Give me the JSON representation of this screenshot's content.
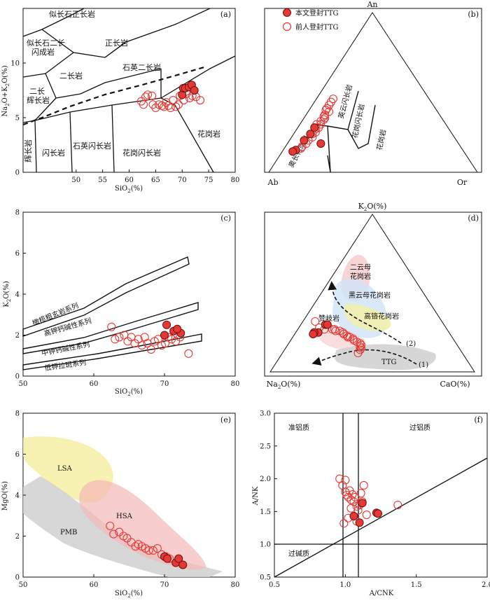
{
  "legend": {
    "present_study": "本文登封TTG",
    "previous": "前人登封TTG",
    "filled_color": "#e53935",
    "open_color": "#e53935"
  },
  "chart_data": [
    {
      "id": "a",
      "panel_label": "(a)",
      "type": "scatter",
      "xlabel": "SiO2(%)",
      "ylabel": "Na2O+K2O(%)",
      "xlim": [
        40,
        80
      ],
      "ylim": [
        0,
        15
      ],
      "xticks": [
        "50",
        "55",
        "60",
        "65",
        "70",
        "75",
        "80"
      ],
      "yticks": [
        "0",
        "5",
        "10"
      ],
      "fields": [
        "似长石正长岩",
        "正长岩",
        "似长石二长闪成岩",
        "石英二长岩",
        "二长岩",
        "二长辉长岩",
        "辉长岩",
        "闪长岩",
        "石英闪长岩",
        "花岗闪长岩",
        "花岗岩"
      ],
      "series": [
        {
          "name": "本文登封TTG",
          "style": "filled",
          "x": [
            70.0,
            70.2,
            70.6,
            71.3,
            71.8,
            72.3
          ],
          "y": [
            7.1,
            7.7,
            7.7,
            7.8,
            8.0,
            7.5
          ]
        },
        {
          "name": "前人登封TTG",
          "style": "open",
          "x": [
            62.3,
            62.7,
            63.1,
            63.5,
            64.3,
            64.5,
            65.0,
            65.6,
            66.2,
            66.6,
            67.0,
            67.4,
            67.8,
            68.3,
            68.8,
            69.3,
            69.6,
            70.3,
            70.8,
            71.4,
            71.9,
            72.6,
            73.4
          ],
          "y": [
            6.5,
            6.2,
            6.9,
            7.1,
            7.0,
            6.2,
            5.9,
            6.2,
            6.1,
            6.0,
            6.4,
            6.1,
            5.9,
            6.6,
            6.0,
            6.2,
            7.0,
            6.6,
            7.2,
            6.8,
            7.0,
            6.9,
            6.6
          ]
        }
      ]
    },
    {
      "id": "b",
      "panel_label": "(b)",
      "type": "ternary",
      "apices": [
        "An",
        "Ab",
        "Or"
      ],
      "fields": [
        "英云闪长岩",
        "花岗闪长岩",
        "花岗岩",
        "奥长花岗岩"
      ],
      "series": [
        {
          "name": "本文登封TTG",
          "style": "filled",
          "an": [
            28,
            24,
            20,
            14,
            13,
            18
          ],
          "ab": [
            64,
            68,
            73,
            80,
            82,
            66
          ],
          "or": [
            8,
            8,
            7,
            6,
            5,
            16
          ]
        },
        {
          "name": "前人登封TTG",
          "style": "open",
          "an": [
            46,
            44,
            42,
            40,
            39,
            38,
            36,
            35,
            34,
            33,
            32,
            30,
            30,
            28,
            27,
            25,
            24,
            22,
            20,
            18,
            16,
            15
          ],
          "ab": [
            46,
            48,
            50,
            52,
            53,
            52,
            55,
            56,
            56,
            57,
            59,
            60,
            62,
            62,
            64,
            65,
            67,
            68,
            71,
            73,
            76,
            77
          ],
          "or": [
            8,
            8,
            8,
            8,
            8,
            10,
            9,
            9,
            10,
            10,
            9,
            10,
            8,
            10,
            9,
            10,
            9,
            10,
            9,
            9,
            8,
            8
          ]
        }
      ]
    },
    {
      "id": "c",
      "panel_label": "(c)",
      "type": "scatter",
      "xlabel": "SiO2(%)",
      "ylabel": "K2O(%)",
      "xlim": [
        50,
        80
      ],
      "ylim": [
        0,
        8
      ],
      "xticks": [
        "50",
        "60",
        "70",
        "80"
      ],
      "yticks": [
        "0",
        "2",
        "4",
        "6",
        "8"
      ],
      "fields": [
        "橄榄粗玄岩系列",
        "高钾钙碱性系列",
        "中钾钙碱性系列",
        "低钾拉斑系列"
      ],
      "series": [
        {
          "name": "本文登封TTG",
          "style": "filled",
          "x": [
            70.0,
            70.3,
            71.3,
            72.3,
            71.8
          ],
          "y": [
            2.0,
            2.5,
            2.2,
            2.1,
            2.3
          ]
        },
        {
          "name": "前人登封TTG",
          "style": "open",
          "x": [
            62.5,
            63.0,
            63.6,
            64.3,
            64.8,
            65.3,
            65.8,
            66.3,
            66.8,
            67.2,
            67.6,
            68.1,
            68.6,
            69.1,
            69.6,
            70.1,
            70.5,
            71.0,
            71.6,
            72.2,
            73.4
          ],
          "y": [
            2.4,
            1.8,
            1.9,
            2.0,
            1.7,
            1.9,
            1.6,
            1.8,
            1.5,
            1.9,
            1.6,
            1.3,
            1.7,
            1.8,
            1.5,
            1.6,
            1.9,
            1.8,
            1.7,
            1.9,
            1.1
          ]
        }
      ]
    },
    {
      "id": "d",
      "panel_label": "(d)",
      "type": "ternary",
      "apices": [
        "K2O(%)",
        "Na2O(%)",
        "CaO(%)"
      ],
      "fields": [
        "二云母花岗岩",
        "黑云母花岗岩",
        "高铬花岗岩",
        "赞岐岩",
        "TTG"
      ],
      "annotations": [
        "(1)",
        "(2)"
      ],
      "series": [
        {
          "name": "本文登封TTG",
          "style": "filled",
          "k": [
            30,
            30,
            25,
            25,
            24
          ],
          "na": [
            58,
            57,
            64,
            66,
            67
          ],
          "ca": [
            12,
            13,
            11,
            9,
            9
          ]
        },
        {
          "name": "前人登封TTG",
          "style": "open",
          "k": [
            32,
            28,
            27,
            27,
            27,
            26,
            26,
            25,
            24,
            24,
            23,
            22,
            22,
            21,
            20,
            19,
            18,
            17,
            16,
            15,
            14,
            12
          ],
          "na": [
            62,
            62,
            60,
            55,
            56,
            55,
            53,
            52,
            52,
            52,
            51,
            51,
            50,
            49,
            49,
            48,
            47,
            47,
            48,
            48,
            49,
            51
          ],
          "ca": [
            6,
            10,
            13,
            18,
            17,
            19,
            21,
            23,
            24,
            24,
            26,
            27,
            28,
            30,
            31,
            33,
            35,
            36,
            36,
            37,
            37,
            37
          ]
        }
      ]
    },
    {
      "id": "e",
      "panel_label": "(e)",
      "type": "scatter",
      "xlabel": "SiO2(%)",
      "ylabel": "MgO(%)",
      "xlim": [
        50,
        80
      ],
      "ylim": [
        0,
        8
      ],
      "xticks": [
        "50",
        "60",
        "70",
        "80"
      ],
      "yticks": [
        "0",
        "2",
        "4",
        "6",
        "8"
      ],
      "fields": [
        "LSA",
        "HSA",
        "PMB"
      ],
      "series": [
        {
          "name": "本文登封TTG",
          "style": "filled",
          "x": [
            70.0,
            70.4,
            71.6,
            72.0,
            72.6
          ],
          "y": [
            1.0,
            0.9,
            0.7,
            0.9,
            0.6
          ]
        },
        {
          "name": "前人登封TTG",
          "style": "open",
          "x": [
            62.3,
            62.8,
            63.6,
            64.2,
            64.7,
            65.3,
            65.9,
            66.3,
            66.8,
            67.3,
            67.8,
            68.4,
            69.0,
            69.6,
            70.2,
            70.7
          ],
          "y": [
            2.5,
            2.1,
            2.2,
            2.0,
            1.9,
            1.7,
            1.5,
            1.6,
            1.5,
            1.4,
            1.3,
            1.3,
            1.4,
            1.1,
            1.0,
            0.9
          ]
        }
      ]
    },
    {
      "id": "f",
      "panel_label": "(f)",
      "type": "scatter",
      "xlabel": "A/CNK",
      "ylabel": "A/NK",
      "xlim": [
        0.5,
        2.0
      ],
      "ylim": [
        0.5,
        3.0
      ],
      "xticks": [
        "0.5",
        "1.0",
        "1.5",
        "2.0"
      ],
      "yticks": [
        "0.5",
        "1.0",
        "1.5",
        "2.0",
        "2.5",
        "3.0"
      ],
      "fields": [
        "准铝质",
        "过铝质",
        "过碱质"
      ],
      "series": [
        {
          "name": "本文登封TTG",
          "style": "filled",
          "x": [
            1.06,
            1.12,
            1.1,
            1.22,
            1.23
          ],
          "y": [
            1.43,
            1.63,
            1.33,
            1.48,
            1.47
          ]
        },
        {
          "name": "前人登封TTG",
          "style": "open",
          "x": [
            0.96,
            0.98,
            1.0,
            1.0,
            1.01,
            1.02,
            1.03,
            1.04,
            1.05,
            1.06,
            1.07,
            1.08,
            1.09,
            1.1,
            1.11,
            1.13,
            1.04,
            0.99,
            1.02,
            1.15,
            1.37,
            1.08,
            1.12
          ],
          "y": [
            2.0,
            1.9,
            1.98,
            1.8,
            1.75,
            1.72,
            1.82,
            1.68,
            1.76,
            1.65,
            1.72,
            1.58,
            1.52,
            1.6,
            1.78,
            1.9,
            1.55,
            1.32,
            1.4,
            1.45,
            1.6,
            1.35,
            1.65
          ]
        }
      ]
    }
  ]
}
